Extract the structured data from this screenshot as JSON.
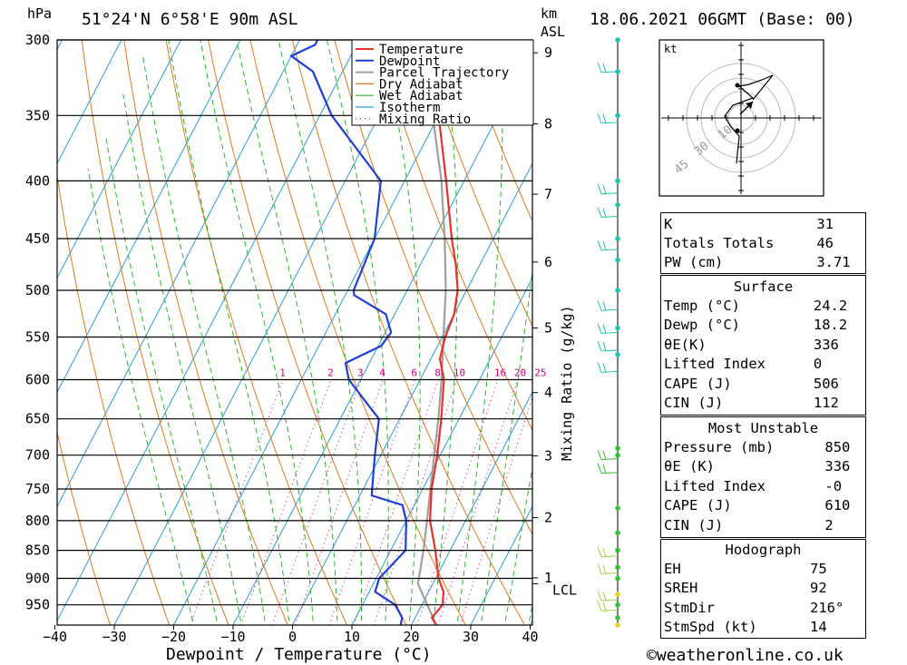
{
  "header": {
    "pressure_unit": "hPa",
    "location": "51°24'N  6°58'E  90m  ASL",
    "height_unit_1": "km",
    "height_unit_2": "ASL",
    "datetime": "18.06.2021  06GMT  (Base: 00)"
  },
  "chart_data": {
    "type": "skew-t log-p",
    "xlabel": "Dewpoint / Temperature (°C)",
    "ylabel_right": "Mixing Ratio (g/kg)",
    "x_ticks": [
      -40,
      -30,
      -20,
      -10,
      0,
      10,
      20,
      30,
      40
    ],
    "pressure_levels": [
      300,
      350,
      400,
      450,
      500,
      550,
      600,
      650,
      700,
      750,
      800,
      850,
      900,
      950
    ],
    "height_km_ticks": [
      "9",
      "8",
      "7",
      "6",
      "5",
      "4",
      "3",
      "2",
      "1"
    ],
    "lcl_label": "LCL",
    "mixing_ratio_labels": [
      "1",
      "2",
      "3",
      "4",
      "6",
      "8",
      "10",
      "16",
      "20",
      "25"
    ],
    "legend": [
      "Temperature",
      "Dewpoint",
      "Parcel Trajectory",
      "Dry Adiabat",
      "Wet Adiabat",
      "Isotherm",
      "Mixing Ratio"
    ],
    "colors": {
      "temperature": "#e8312a",
      "dewpoint": "#1f3fd6",
      "parcel": "#a0a0a0",
      "dry_adiabat": "#e07a1c",
      "wet_adiabat": "#2db52d",
      "isotherm": "#2a9fd6",
      "mixing_ratio": "#c8007a"
    },
    "temperature": [
      [
        990,
        24.2
      ],
      [
        975,
        22.8
      ],
      [
        950,
        23.5
      ],
      [
        925,
        22.5
      ],
      [
        900,
        20.5
      ],
      [
        850,
        17.5
      ],
      [
        800,
        14.0
      ],
      [
        750,
        11.5
      ],
      [
        700,
        9.5
      ],
      [
        650,
        7.0
      ],
      [
        600,
        4.0
      ],
      [
        575,
        1.5
      ],
      [
        550,
        0.5
      ],
      [
        525,
        0.0
      ],
      [
        500,
        -1.5
      ],
      [
        475,
        -4.0
      ],
      [
        450,
        -7.0
      ],
      [
        400,
        -13.0
      ],
      [
        350,
        -20.0
      ],
      [
        300,
        -28.5
      ]
    ],
    "dewpoint": [
      [
        990,
        18.2
      ],
      [
        975,
        17.8
      ],
      [
        950,
        15.5
      ],
      [
        925,
        11.0
      ],
      [
        900,
        10.5
      ],
      [
        850,
        12.5
      ],
      [
        800,
        10.0
      ],
      [
        775,
        8.0
      ],
      [
        760,
        2.0
      ],
      [
        750,
        1.5
      ],
      [
        700,
        -1.0
      ],
      [
        650,
        -3.5
      ],
      [
        600,
        -12.0
      ],
      [
        580,
        -14.0
      ],
      [
        560,
        -9.5
      ],
      [
        545,
        -9.0
      ],
      [
        525,
        -11.5
      ],
      [
        505,
        -18.5
      ],
      [
        500,
        -19.0
      ],
      [
        450,
        -20.0
      ],
      [
        400,
        -24.0
      ],
      [
        350,
        -38.0
      ],
      [
        320,
        -45.0
      ],
      [
        310,
        -50.0
      ],
      [
        303,
        -47.0
      ],
      [
        300,
        -47.0
      ]
    ],
    "parcel": [
      [
        990,
        24.2
      ],
      [
        910,
        17.5
      ],
      [
        850,
        15.5
      ],
      [
        800,
        13.5
      ],
      [
        750,
        11.3
      ],
      [
        700,
        9.0
      ],
      [
        650,
        6.5
      ],
      [
        600,
        3.6
      ],
      [
        550,
        0.2
      ],
      [
        500,
        -3.5
      ],
      [
        450,
        -8.2
      ],
      [
        400,
        -13.8
      ],
      [
        350,
        -21.0
      ],
      [
        300,
        -30.0
      ]
    ]
  },
  "hodograph": {
    "unit": "kt",
    "ring_labels": [
      "10",
      "30",
      "45"
    ]
  },
  "indices_top": [
    {
      "name": "K",
      "value": "31"
    },
    {
      "name": "Totals Totals",
      "value": "46"
    },
    {
      "name": "PW (cm)",
      "value": "3.71"
    }
  ],
  "surface": {
    "title": "Surface",
    "rows": [
      {
        "name": "Temp (°C)",
        "value": "24.2"
      },
      {
        "name": "Dewp (°C)",
        "value": "18.2"
      },
      {
        "name": "θE(K)",
        "value": "336"
      },
      {
        "name": "Lifted Index",
        "value": "0"
      },
      {
        "name": "CAPE (J)",
        "value": "506"
      },
      {
        "name": "CIN (J)",
        "value": "112"
      }
    ]
  },
  "most_unstable": {
    "title": "Most Unstable",
    "rows": [
      {
        "name": "Pressure (mb)",
        "value": "850"
      },
      {
        "name": "θE (K)",
        "value": "336"
      },
      {
        "name": "Lifted Index",
        "value": "-0"
      },
      {
        "name": "CAPE (J)",
        "value": "610"
      },
      {
        "name": "CIN (J)",
        "value": "2"
      }
    ]
  },
  "hodo_table": {
    "title": "Hodograph",
    "rows": [
      {
        "name": "EH",
        "value": "75"
      },
      {
        "name": "SREH",
        "value": "92"
      },
      {
        "name": "StmDir",
        "value": "216°"
      },
      {
        "name": "StmSpd (kt)",
        "value": "14"
      }
    ]
  },
  "footer": {
    "copyright": "©weatheronline.co.uk"
  }
}
